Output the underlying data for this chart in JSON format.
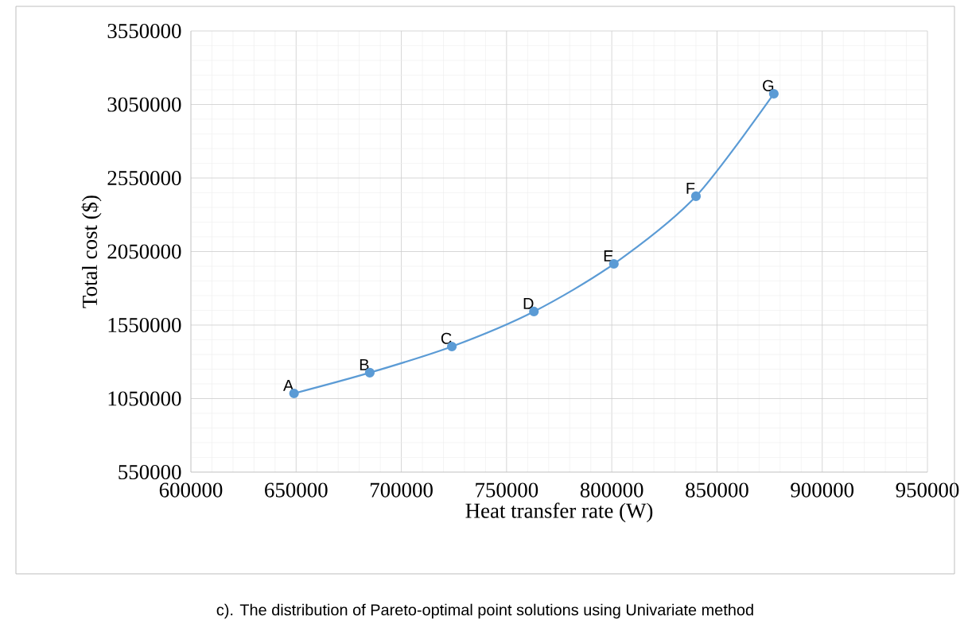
{
  "chart_data": {
    "type": "line",
    "xlabel": "Heat transfer rate (W)",
    "ylabel": "Total cost ($)",
    "series": [
      {
        "color": "#5b9bd5",
        "x": [
          649000,
          685000,
          724000,
          763000,
          801000,
          840000,
          877000
        ],
        "values": [
          1085000,
          1226000,
          1404000,
          1642000,
          1966000,
          2426000,
          3123000
        ]
      }
    ],
    "xlim": [
      600000,
      950000
    ],
    "ylim": [
      550000,
      3550000
    ],
    "xticks": [
      600000,
      650000,
      700000,
      750000,
      800000,
      850000,
      900000,
      950000
    ],
    "yticks": [
      550000,
      1050000,
      1550000,
      2050000,
      2550000,
      3050000,
      3550000
    ],
    "grid": true,
    "marker": "circle",
    "line_style": "solid",
    "annotations": [
      {
        "text": "A",
        "x": 649000,
        "y": 1085000
      },
      {
        "text": "B",
        "x": 685000,
        "y": 1226000
      },
      {
        "text": "C",
        "x": 724000,
        "y": 1404000
      },
      {
        "text": "D",
        "x": 763000,
        "y": 1642000
      },
      {
        "text": "E",
        "x": 801000,
        "y": 1966000
      },
      {
        "text": "F",
        "x": 840000,
        "y": 2426000
      },
      {
        "text": "G",
        "x": 877000,
        "y": 3123000
      },
      "c). The distribution of Pareto-optimal point solutions using Univariate method"
    ]
  }
}
